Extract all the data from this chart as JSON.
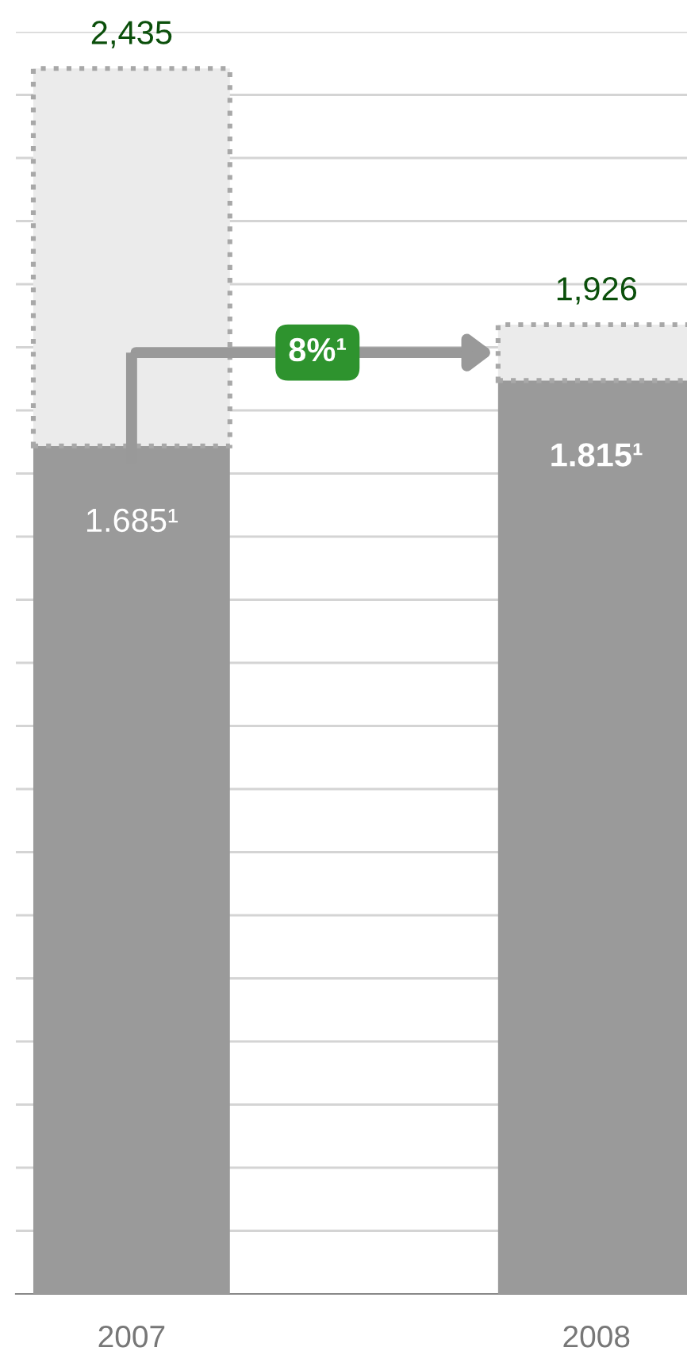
{
  "chart_data": {
    "type": "bar",
    "stacked": true,
    "categories": [
      "2007",
      "2008"
    ],
    "series": [
      {
        "values": [
          1.685,
          1.815
        ],
        "color": "#9a9a9a",
        "value_labels": [
          "1.685¹",
          "1.815¹"
        ]
      },
      {
        "values": [
          0.75,
          0.111
        ],
        "color": "#ebebeb",
        "line_style": "dotted"
      }
    ],
    "totals": [
      "2,435",
      "1,926"
    ],
    "annotations": [
      "8%¹"
    ],
    "grid": "y",
    "tick_labels": "x"
  }
}
